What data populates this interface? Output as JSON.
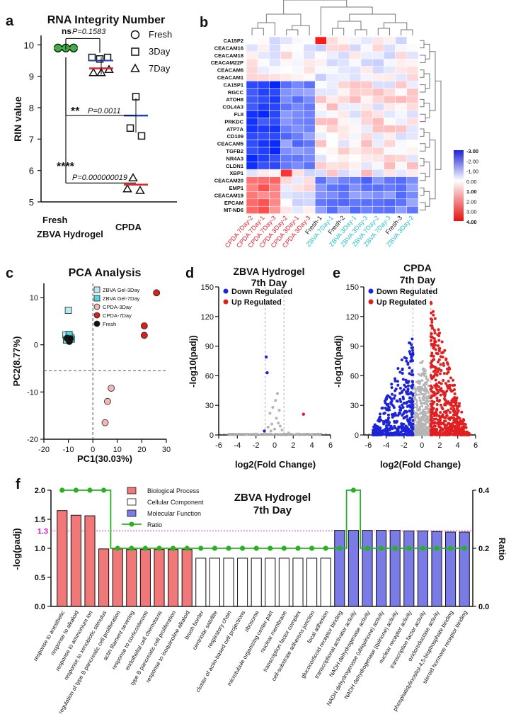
{
  "colors": {
    "fresh": "#3cb043",
    "zbva": "#1f3fbf",
    "cpda": "#e0202a",
    "heat_blue": "#1d24d6",
    "heat_red": "#e81010",
    "green": "#27b224",
    "cyan": "#27c0cc",
    "purple": "#7b7be8",
    "salmon": "#f07878",
    "pink": "#f5b5b5",
    "magenta": "#d413d4"
  },
  "panel_a": {
    "letter": "a",
    "title": "RNA Integrity Number",
    "ylabel": "RIN value",
    "yticks": [
      "5",
      "6",
      "7",
      "8",
      "9",
      "10"
    ],
    "xticks": [
      "Fresh",
      "ZBVA Hydrogel",
      "CPDA"
    ],
    "legend": [
      "Fresh",
      "3Day",
      "7Day"
    ],
    "sig1_stars": "ns",
    "sig1_p": "P=0.1583",
    "sig2_stars": "**",
    "sig2_p": "P=0.0011",
    "sig3_stars": "****",
    "sig3_p": "P=0.000000019",
    "chart_data": {
      "type": "scatter",
      "groups": [
        {
          "name": "Fresh",
          "mean": 9.9,
          "points": [
            9.9,
            9.9,
            9.9
          ]
        },
        {
          "name": "ZBVA Hydrogel",
          "mean": 9.25,
          "points_3day": [
            9.6,
            9.55,
            9.6
          ],
          "points_7day": [
            9.1,
            9.1,
            9.2
          ]
        },
        {
          "name": "CPDA",
          "mean": 7.75,
          "points_3day": [
            8.35,
            7.3,
            7.1
          ],
          "points_7day": [
            5.75,
            5.4,
            5.35
          ]
        }
      ],
      "ylim": [
        5,
        10.3
      ]
    }
  },
  "panel_b": {
    "letter": "b",
    "rows": [
      "CA15P2",
      "CEACAM16",
      "CEACAM18",
      "CEACAM22P",
      "CEACAM6",
      "CEACAM1",
      "CA15P1",
      "RGCC",
      "ATOH8",
      "COL4A3",
      "FLII",
      "PRKDC",
      "ATP7A",
      "CD109",
      "CEACAM5",
      "TGFB2",
      "NR4A3",
      "CLDN1",
      "XBP1",
      "CEACAM20",
      "EMP1",
      "CEACAM19",
      "EPCAM",
      "MT-ND6"
    ],
    "cols": [
      "CPDA 7Day-2",
      "CPDA 7Day-1",
      "CPDA 7Day-3",
      "CPDA 3Day-2",
      "CPDA 3Day-1",
      "CPDA 3Day-3",
      "Fresh-1",
      "ZBVA 7Day-1",
      "Fresh-2",
      "ZBVA 3Day-1",
      "ZBVA 3Day-3",
      "ZBVA 7Day-2",
      "ZBVA 7Day-3",
      "Fresh-3",
      "ZBVA 3Day-2"
    ],
    "col_colors": [
      "#e0202a",
      "#e0202a",
      "#e0202a",
      "#e0202a",
      "#e0202a",
      "#e0202a",
      "#111111",
      "#27c0cc",
      "#111111",
      "#27c0cc",
      "#27c0cc",
      "#27c0cc",
      "#27c0cc",
      "#111111",
      "#27c0cc"
    ],
    "scale_labels": [
      "-3.00",
      "-2.00",
      "-1.00",
      "0.00",
      "1.00",
      "2.00",
      "3.00",
      "4.00"
    ]
  },
  "panel_c": {
    "letter": "c",
    "title": "PCA Analysis",
    "xlabel": "PC1(30.03%)",
    "ylabel": "PC2(8.77%)",
    "xticks": [
      "-20",
      "-10",
      "0",
      "10",
      "20",
      "30"
    ],
    "yticks": [
      "10",
      "0",
      "-10",
      "-20"
    ],
    "legend": [
      "ZBVA Gel-3Day",
      "ZBVA Gel-7Day",
      "CPDA-3Day",
      "CPDA-7Day",
      "Fresh"
    ],
    "chart_data": {
      "type": "scatter",
      "xlim": [
        -20,
        30
      ],
      "ylim": [
        -20,
        13
      ],
      "series": [
        {
          "name": "ZBVA Gel-3Day",
          "points": [
            [
              -10,
              7.3
            ],
            [
              -11,
              2.1
            ],
            [
              -9,
              1.6
            ]
          ]
        },
        {
          "name": "ZBVA Gel-7Day",
          "points": [
            [
              -9.7,
              2.2
            ],
            [
              -8.8,
              1.2
            ],
            [
              -10.8,
              1.0
            ]
          ]
        },
        {
          "name": "CPDA-3Day",
          "points": [
            [
              7.5,
              -9.2
            ],
            [
              6,
              -12
            ],
            [
              5,
              -16.5
            ]
          ]
        },
        {
          "name": "CPDA-7Day",
          "points": [
            [
              26,
              11
            ],
            [
              21,
              4
            ],
            [
              21,
              2
            ]
          ]
        },
        {
          "name": "Fresh",
          "points": [
            [
              -9.6,
              0.7
            ],
            [
              -10.5,
              1.4
            ],
            [
              -9.2,
              1.3
            ]
          ]
        }
      ]
    }
  },
  "panel_d": {
    "letter": "d",
    "title1": "ZBVA Hydrogel",
    "title2": "7th Day",
    "xlabel": "log2(Fold Change)",
    "ylabel": "-log10(padj)",
    "legend": [
      "Down Regulated",
      "Up Regulated"
    ],
    "xticks": [
      "-6",
      "-4",
      "-2",
      "0",
      "2",
      "4",
      "6"
    ],
    "yticks": [
      "0",
      "30",
      "60",
      "90",
      "120",
      "150"
    ],
    "chart_data": {
      "type": "scatter",
      "xlim": [
        -6,
        6
      ],
      "ylim": [
        0,
        150
      ],
      "down": [
        [
          -0.9,
          79
        ],
        [
          -0.8,
          63
        ],
        [
          -1.1,
          4
        ]
      ],
      "up": [
        [
          3.1,
          21
        ]
      ],
      "ns": [
        [
          0.3,
          42
        ],
        [
          0.1,
          35
        ],
        [
          -0.2,
          28
        ],
        [
          0.5,
          25
        ],
        [
          -0.5,
          22
        ],
        [
          0.2,
          17
        ],
        [
          0.4,
          12
        ],
        [
          -0.3,
          11
        ],
        [
          0.6,
          9
        ],
        [
          -0.7,
          8
        ],
        [
          0,
          6
        ],
        [
          0.8,
          5
        ],
        [
          -0.4,
          4
        ],
        [
          1.5,
          2
        ],
        [
          -2,
          1
        ],
        [
          2.5,
          1
        ],
        [
          -3,
          0.5
        ],
        [
          4,
          0.5
        ]
      ]
    }
  },
  "panel_e": {
    "letter": "e",
    "title1": "CPDA",
    "title2": "7th Day",
    "xlabel": "log2(Fold Change)",
    "ylabel": "-log10(padj)",
    "legend": [
      "Down Regulated",
      "Up Regulated"
    ],
    "xticks": [
      "-6",
      "-4",
      "-2",
      "0",
      "2",
      "4",
      "6"
    ],
    "yticks": [
      "0",
      "30",
      "60",
      "90",
      "120",
      "150"
    ],
    "chart_data": {
      "type": "scatter",
      "xlim": [
        -6.5,
        6
      ],
      "ylim": [
        0,
        150
      ],
      "note": "volcano plot; down-regulated up to ~100, up-regulated up to ~135"
    }
  },
  "panel_f": {
    "letter": "f",
    "title1": "ZBVA Hydrogel",
    "title2": "7th Day",
    "ylabel": "-log(padj)",
    "ylabel_right": "Ratio",
    "threshold_label": "1.3",
    "yticks": [
      "0.0",
      "0.5",
      "1.0",
      "1.5",
      "2.0"
    ],
    "yticks_right": [
      "0.0",
      "0.2",
      "0.4"
    ],
    "legend": [
      "Biological Process",
      "Cellular Component",
      "Molecular Function",
      "Ratio"
    ],
    "chart_data": {
      "type": "bar",
      "ylim": [
        0,
        2
      ],
      "ylim_right": [
        0,
        0.4
      ],
      "categories": [
        "response to anesthetic",
        "response to alkaloid",
        "response to ammonium ion",
        "response to xenobiotic stimulus",
        "regulation of type B pancreatic cell proliferation",
        "actin filament severing",
        "response to corticosterone",
        "endothelial cell chemotaxis",
        "type B pancreatic cell proliferation",
        "response to isoquinoline alkaloid",
        "brush border",
        "centriolar satellite",
        "respiratory chain",
        "cluster of actin-based cell projections",
        "ribosome",
        "microtubule organizing center part",
        "nuclear membrane",
        "transcription factor complex",
        "cell-substrate adherens junction",
        "focal adhesion",
        "glucocorticoid receptor binding",
        "transcriptional activator activity",
        "NADH dehydrogenase activity",
        "NADH dehydrogenase (ubiquinone) activity",
        "NADH dehydrogenase (quinone) activity",
        "nuclear receptor activity",
        "transcription factor activity",
        "oxidoreductase activity",
        "phosphatidylinositol-4,5-bisphosphate binding",
        "steroid hormone receptor binding"
      ],
      "values": [
        1.65,
        1.57,
        1.56,
        0.99,
        0.99,
        0.98,
        0.98,
        0.98,
        0.98,
        0.98,
        0.83,
        0.83,
        0.83,
        0.83,
        0.83,
        0.83,
        0.83,
        0.83,
        0.83,
        0.83,
        1.31,
        1.31,
        1.31,
        1.31,
        1.31,
        1.3,
        1.3,
        1.29,
        1.28,
        1.28
      ],
      "groups": [
        "BP",
        "BP",
        "BP",
        "BP",
        "BP",
        "BP",
        "BP",
        "BP",
        "BP",
        "BP",
        "CC",
        "CC",
        "CC",
        "CC",
        "CC",
        "CC",
        "CC",
        "CC",
        "CC",
        "CC",
        "MF",
        "MF",
        "MF",
        "MF",
        "MF",
        "MF",
        "MF",
        "MF",
        "MF",
        "MF"
      ],
      "ratio": [
        0.4,
        0.4,
        0.4,
        0.4,
        0.2,
        0.2,
        0.2,
        0.2,
        0.2,
        0.2,
        0.2,
        0.2,
        0.2,
        0.2,
        0.2,
        0.2,
        0.2,
        0.2,
        0.2,
        0.2,
        0.2,
        0.4,
        0.2,
        0.2,
        0.2,
        0.2,
        0.2,
        0.2,
        0.2,
        0.2
      ]
    }
  }
}
